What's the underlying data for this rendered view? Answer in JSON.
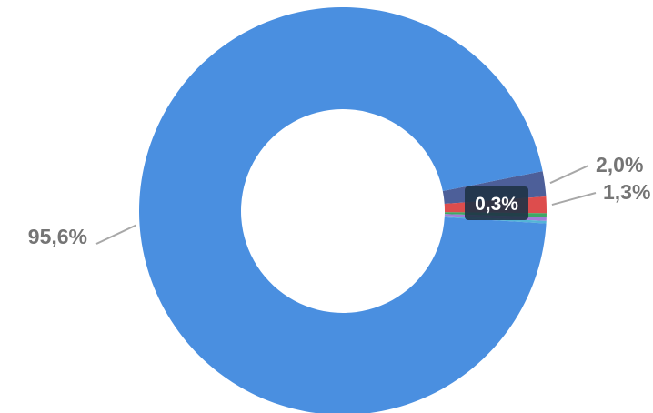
{
  "chart_data": {
    "type": "pie",
    "donut": true,
    "slices": [
      {
        "value": 95.6,
        "label": "95,6%",
        "color": "#4a8fe0"
      },
      {
        "value": 2.0,
        "label": "2,0%",
        "color": "#4d5f99"
      },
      {
        "value": 1.3,
        "label": "1,3%",
        "color": "#dd4d4d"
      },
      {
        "value": 0.3,
        "label": "0,3%",
        "color": "#3fa866"
      },
      {
        "value": 0.3,
        "label": "",
        "color": "#a47dd8"
      },
      {
        "value": 0.2,
        "label": "",
        "color": "#54b5d6"
      }
    ],
    "tooltip": {
      "text": "0,3%",
      "color": "#1f3346"
    }
  }
}
